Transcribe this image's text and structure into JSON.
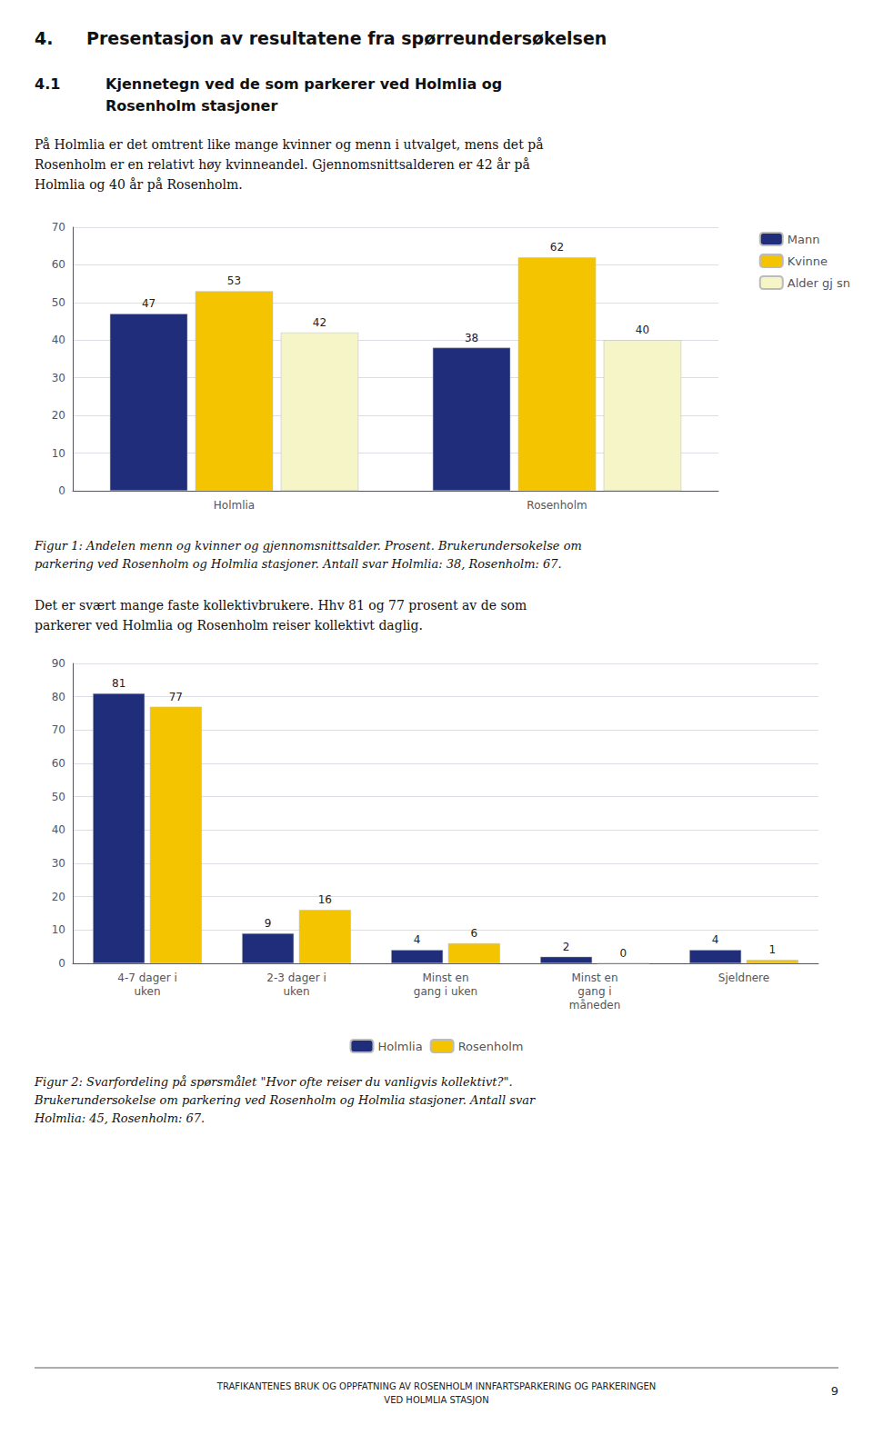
{
  "chart_data": [
    {
      "type": "bar",
      "title": "Figur 1: Andelen menn og kvinner og gjennomsnittsalder. Prosent. Brukerundersokelse om\nparkering ved Rosenholm og Holmlia stasjoner. Antall svar Holmlia: 38, Rosenholm: 67.",
      "annotations": [
        "4.",
        "Presentasjon av resultatene fra spørreundersøkelsen",
        "4.1",
        "Kjennetegn ved de som parkerer ved Holmlia og\nRosenholm stasjoner",
        "På Holmlia er det omtrent like mange kvinner og menn i utvalget, mens det på\nRosenholm er en relativt høy kvinneandel. Gjennomsnittsalderen er 42 år på\nHolmlia og 40 år på Rosenholm."
      ],
      "categories": [
        "Holmlia",
        "Rosenholm"
      ],
      "series": [
        {
          "name": "Mann",
          "color": "#1f2d7b",
          "values": [
            47,
            38
          ]
        },
        {
          "name": "Kvinne",
          "color": "#f5c400",
          "values": [
            53,
            62
          ]
        },
        {
          "name": "Alder gj sn",
          "color": "#f5f5c8",
          "values": [
            42,
            40
          ]
        }
      ],
      "ylim": [
        0,
        70
      ],
      "yticks": [
        0,
        10,
        20,
        30,
        40,
        50,
        60,
        70
      ],
      "grid": true,
      "legend": "upper right",
      "data_labels": true
    },
    {
      "type": "bar",
      "title": "Figur 2: Svarfordeling på spørsmålet \"Hvor ofte reiser du vanligvis kollektivt?\".\nBrukerundersokelse om parkering ved Rosenholm og Holmlia stasjoner. Antall svar\nHolmlia: 45, Rosenholm: 67.",
      "annotations": [
        "Det er svært mange faste kollektivbrukere. Hhv 81 og 77 prosent av de som\nparkerer ved Holmlia og Rosenholm reiser kollektivt daglig.",
        "TRAFIKANTENES BRUK OG OPPFATNING AV ROSENHOLM INNFARTSPARKERING OG PARKERINGEN\nVED HOLMLIA STASJON",
        "9"
      ],
      "categories": [
        "4-7 dager i\nuken",
        "2-3 dager i\nuken",
        "Minst en\ngang i uken",
        "Minst en\ngang i\nmåneden",
        "Sjeldnere"
      ],
      "series": [
        {
          "name": "Holmlia",
          "color": "#1f2d7b",
          "values": [
            81,
            9,
            4,
            2,
            4
          ]
        },
        {
          "name": "Rosenholm",
          "color": "#f5c400",
          "values": [
            77,
            16,
            6,
            0,
            1
          ]
        }
      ],
      "ylim": [
        0,
        90
      ],
      "yticks": [
        0,
        10,
        20,
        30,
        40,
        50,
        60,
        70,
        80,
        90
      ],
      "grid": true,
      "legend": "lower center",
      "data_labels": true
    }
  ]
}
